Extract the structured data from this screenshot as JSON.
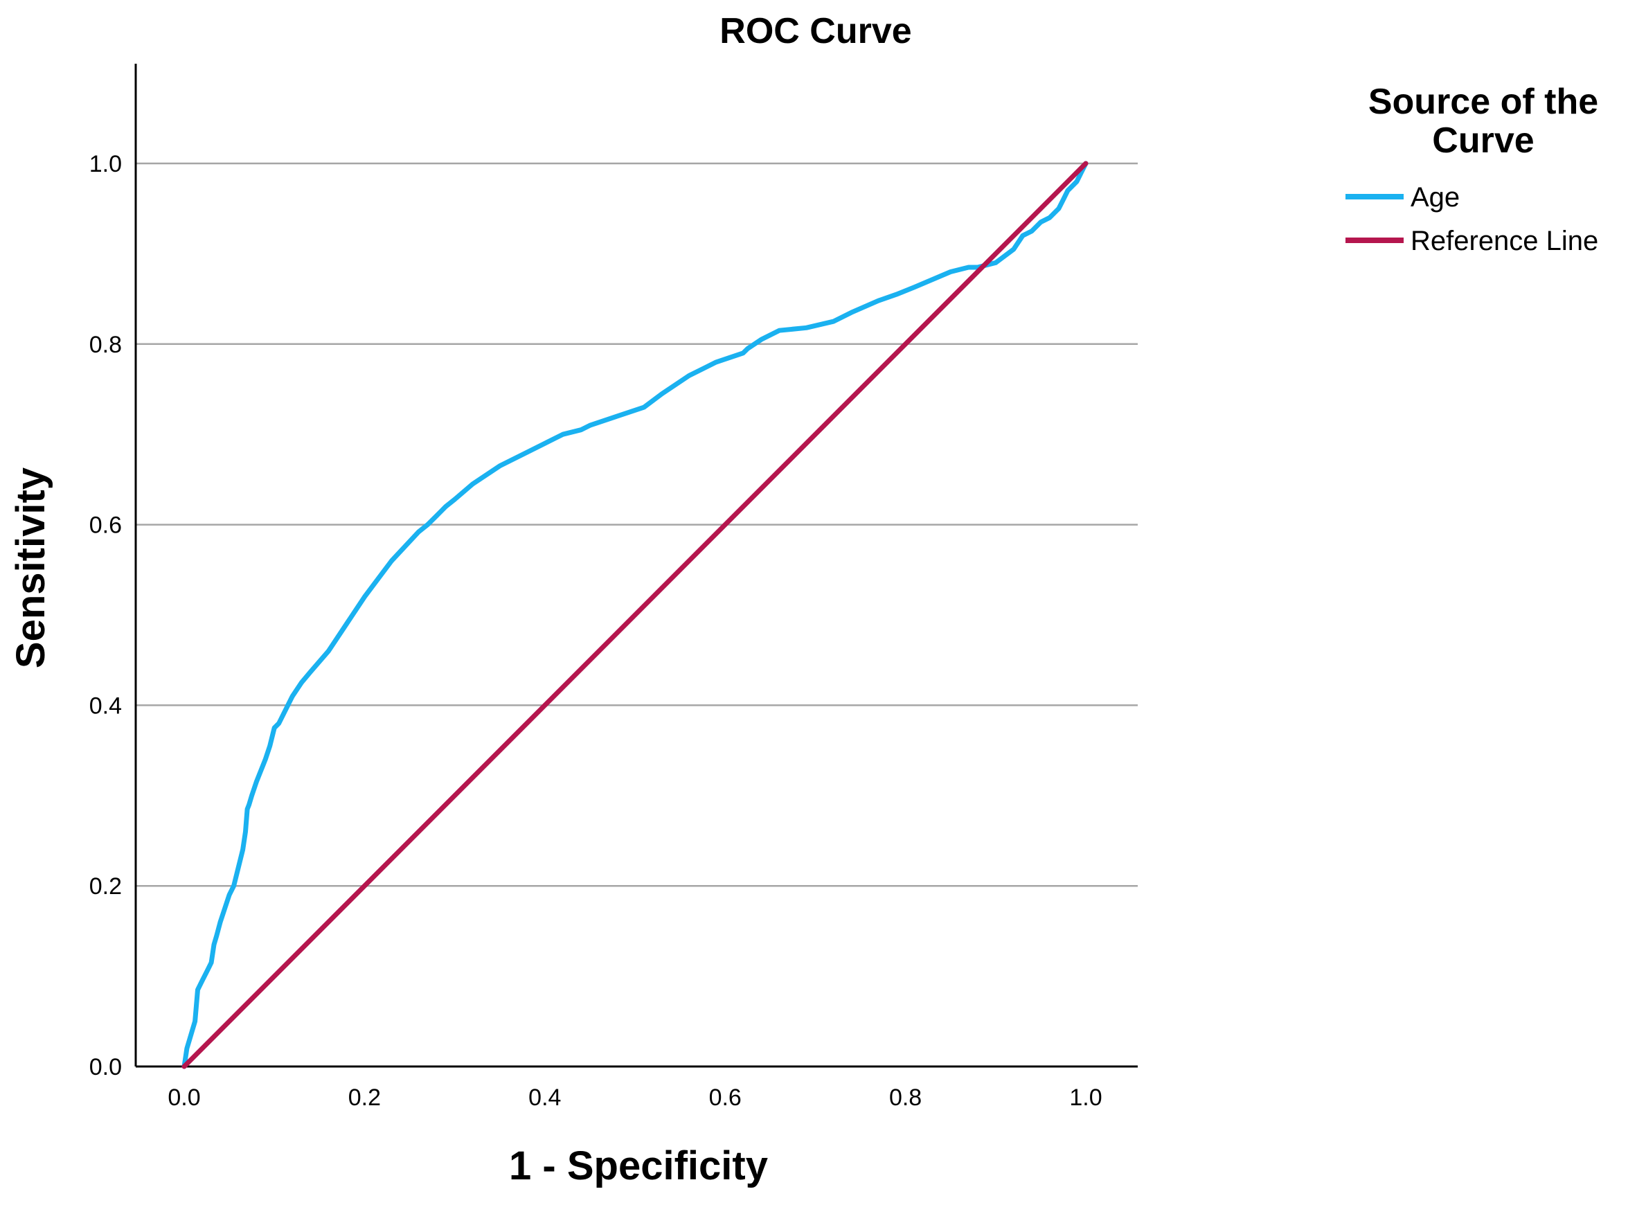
{
  "chart_data": {
    "type": "line",
    "title": "ROC Curve",
    "xlabel": "1 - Specificity",
    "ylabel": "Sensitivity",
    "xlim": [
      0.0,
      1.0
    ],
    "ylim": [
      0.0,
      1.0
    ],
    "x_ticks": [
      "0.0",
      "0.2",
      "0.4",
      "0.6",
      "0.8",
      "1.0"
    ],
    "y_ticks": [
      "0.0",
      "0.2",
      "0.4",
      "0.6",
      "0.8",
      "1.0"
    ],
    "grid": "horizontal",
    "legend": {
      "title_lines": [
        "Source of the",
        "Curve"
      ],
      "placement": "right"
    },
    "colors": {
      "age": "#1ab1f0",
      "reference": "#b5164e",
      "gridline": "#a6a6a6",
      "axis": "#000000"
    },
    "series": [
      {
        "name": "Age",
        "x": [
          0.0,
          0.003,
          0.006,
          0.009,
          0.012,
          0.015,
          0.02,
          0.025,
          0.03,
          0.033,
          0.036,
          0.04,
          0.045,
          0.05,
          0.055,
          0.06,
          0.065,
          0.068,
          0.07,
          0.072,
          0.075,
          0.08,
          0.09,
          0.095,
          0.1,
          0.105,
          0.11,
          0.115,
          0.12,
          0.13,
          0.14,
          0.16,
          0.18,
          0.2,
          0.23,
          0.26,
          0.27,
          0.28,
          0.29,
          0.3,
          0.32,
          0.35,
          0.38,
          0.4,
          0.42,
          0.44,
          0.45,
          0.48,
          0.51,
          0.53,
          0.56,
          0.59,
          0.62,
          0.625,
          0.64,
          0.66,
          0.69,
          0.72,
          0.74,
          0.77,
          0.79,
          0.81,
          0.85,
          0.87,
          0.88,
          0.9,
          0.92,
          0.93,
          0.94,
          0.95,
          0.96,
          0.97,
          0.975,
          0.98,
          0.985,
          0.99,
          0.995,
          1.0
        ],
        "y": [
          0.0,
          0.02,
          0.03,
          0.04,
          0.05,
          0.085,
          0.095,
          0.105,
          0.115,
          0.135,
          0.145,
          0.16,
          0.175,
          0.19,
          0.2,
          0.22,
          0.24,
          0.26,
          0.285,
          0.29,
          0.3,
          0.315,
          0.34,
          0.355,
          0.375,
          0.38,
          0.39,
          0.4,
          0.41,
          0.425,
          0.437,
          0.46,
          0.49,
          0.52,
          0.56,
          0.592,
          0.6,
          0.61,
          0.62,
          0.628,
          0.645,
          0.665,
          0.68,
          0.69,
          0.7,
          0.705,
          0.71,
          0.72,
          0.73,
          0.745,
          0.765,
          0.78,
          0.79,
          0.795,
          0.805,
          0.815,
          0.818,
          0.825,
          0.835,
          0.848,
          0.855,
          0.863,
          0.88,
          0.885,
          0.885,
          0.89,
          0.905,
          0.92,
          0.925,
          0.935,
          0.94,
          0.95,
          0.96,
          0.97,
          0.975,
          0.98,
          0.99,
          1.0
        ]
      },
      {
        "name": "Reference Line",
        "x": [
          0.0,
          1.0
        ],
        "y": [
          0.0,
          1.0
        ]
      }
    ]
  }
}
